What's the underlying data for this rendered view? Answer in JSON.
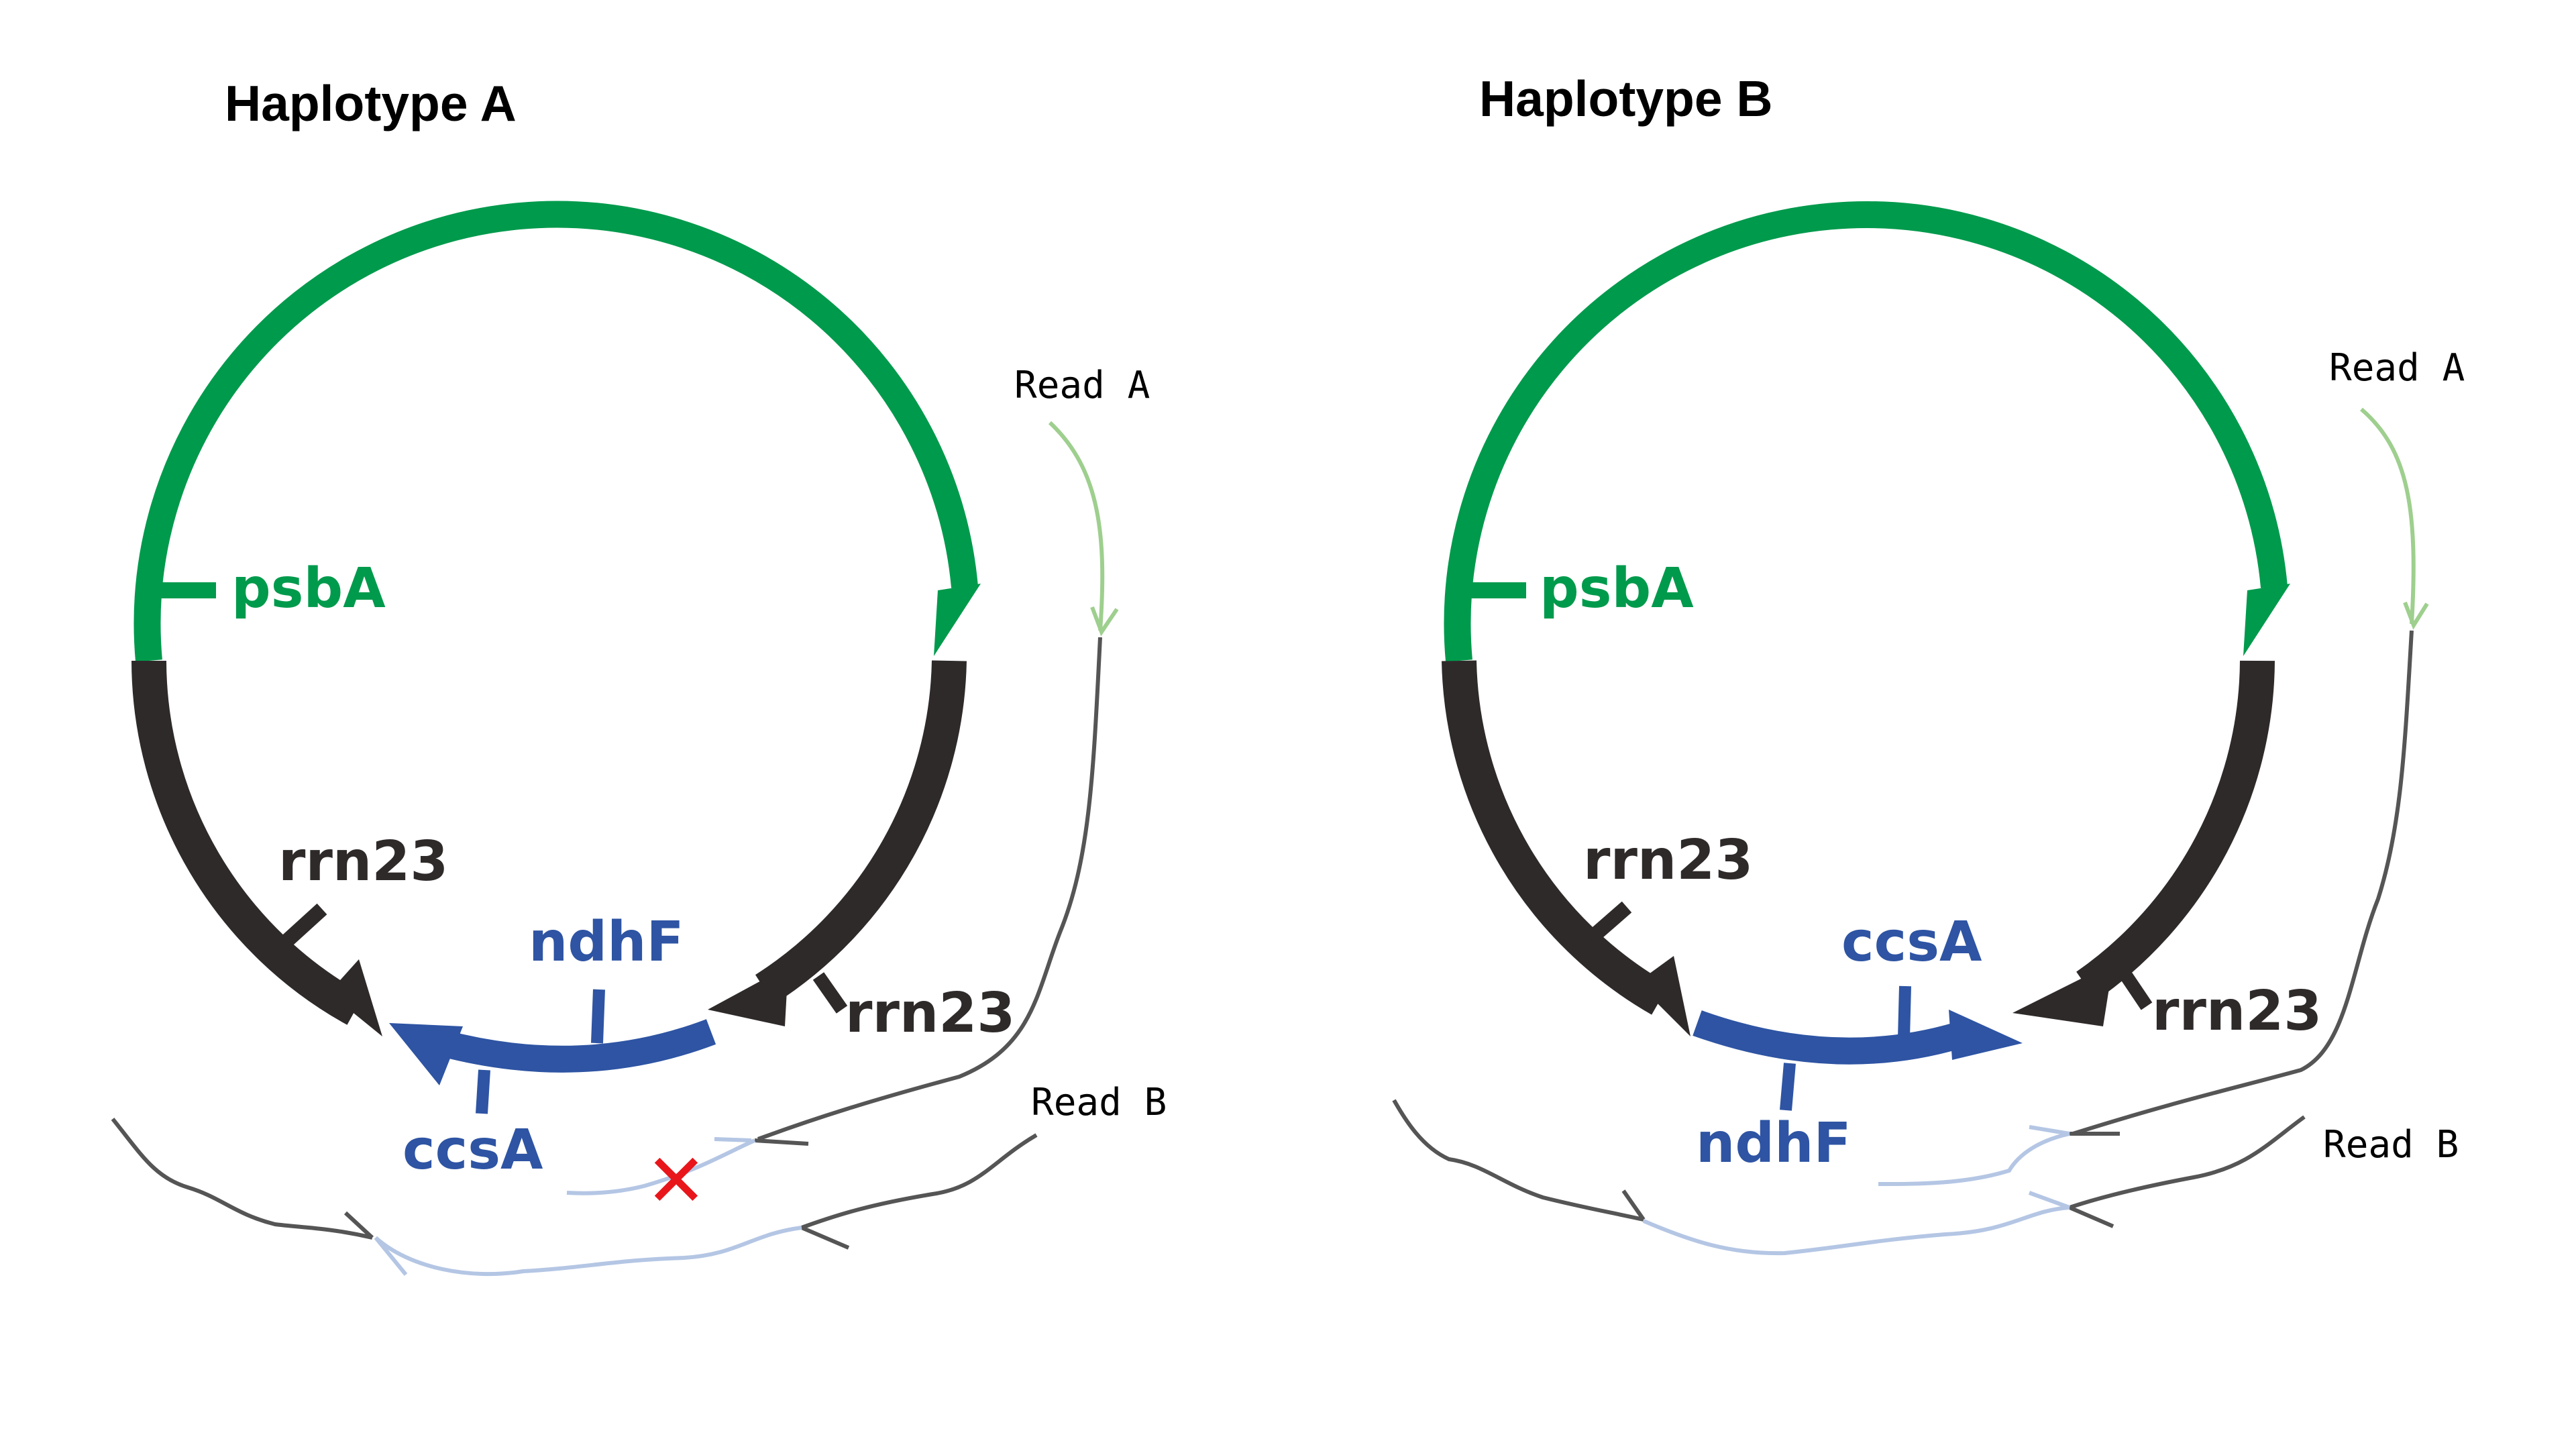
{
  "colors": {
    "green": "#009a4c",
    "dark": "#2f2a2a",
    "blue": "#2e54a3",
    "read_green": "#9ecf8e",
    "read_blue": "#b4c6e4",
    "read_gray": "#555555",
    "cross": "#e8161b"
  },
  "panels": [
    {
      "title": "Haplotype A",
      "genes": {
        "psbA": "psbA",
        "rrn23_left": "rrn23",
        "rrn23_right": "rrn23",
        "upper_blue": "ndhF",
        "lower_blue": "ccsA"
      },
      "reads": {
        "read_a": "Read A",
        "read_b": "Read B"
      },
      "cross_mark": "✕"
    },
    {
      "title": "Haplotype B",
      "genes": {
        "psbA": "psbA",
        "rrn23_left": "rrn23",
        "rrn23_right": "rrn23",
        "upper_blue": "ccsA",
        "lower_blue": "ndhF"
      },
      "reads": {
        "read_a": "Read A",
        "read_b": "Read B"
      }
    }
  ]
}
